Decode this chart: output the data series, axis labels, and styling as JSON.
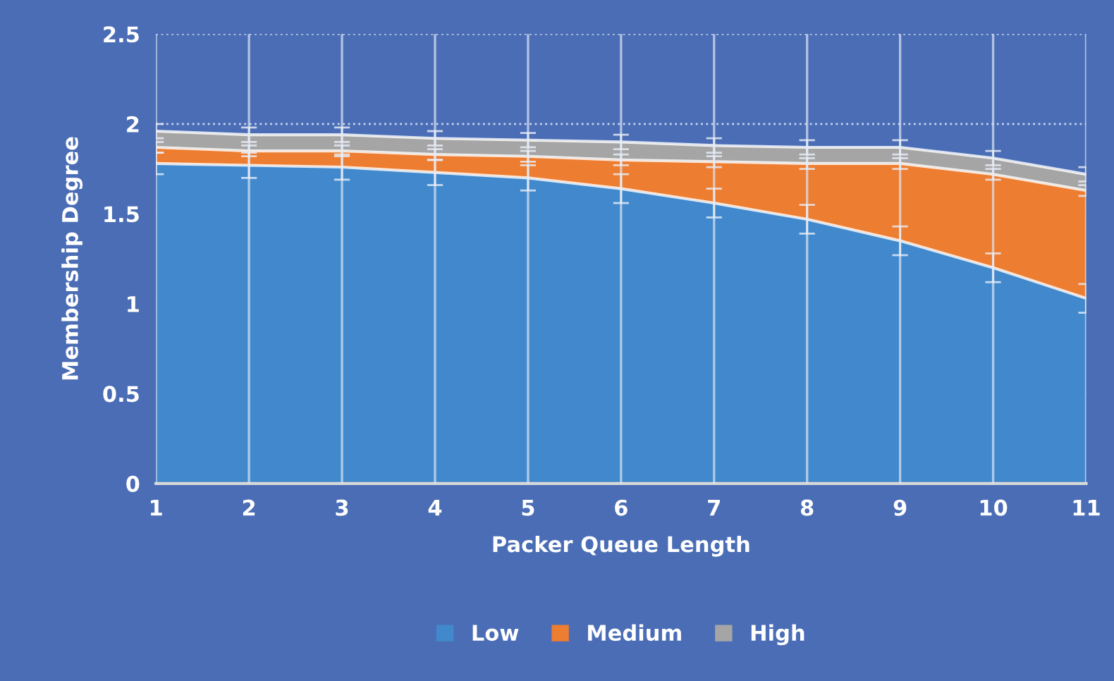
{
  "chart_data": {
    "type": "area",
    "stacked": true,
    "xlabel": "Packer Queue Length",
    "ylabel": "Membership Degree",
    "x": [
      1,
      2,
      3,
      4,
      5,
      6,
      7,
      8,
      9,
      10,
      11
    ],
    "xlim": [
      1,
      11
    ],
    "xticks": [
      1,
      2,
      3,
      4,
      5,
      6,
      7,
      8,
      9,
      10,
      11
    ],
    "ylim": [
      0,
      2.5
    ],
    "yticks": [
      0,
      0.5,
      1,
      1.5,
      2,
      2.5
    ],
    "grid": true,
    "legend": "bottom",
    "series": [
      {
        "name": "Low",
        "color": "#4189cc",
        "values": [
          1.78,
          1.77,
          1.76,
          1.73,
          1.7,
          1.64,
          1.56,
          1.47,
          1.35,
          1.2,
          1.03
        ],
        "errors": [
          0.06,
          0.07,
          0.07,
          0.07,
          0.07,
          0.08,
          0.08,
          0.08,
          0.08,
          0.08,
          0.08
        ]
      },
      {
        "name": "Medium",
        "color": "#ed7d31",
        "values": [
          0.09,
          0.08,
          0.09,
          0.1,
          0.12,
          0.16,
          0.23,
          0.31,
          0.43,
          0.52,
          0.6
        ],
        "errors": [
          0.03,
          0.03,
          0.03,
          0.03,
          0.03,
          0.03,
          0.03,
          0.03,
          0.03,
          0.03,
          0.03
        ]
      },
      {
        "name": "High",
        "color": "#a5a5a5",
        "values": [
          0.09,
          0.09,
          0.09,
          0.09,
          0.09,
          0.1,
          0.09,
          0.09,
          0.09,
          0.09,
          0.09
        ],
        "errors": [
          0.04,
          0.04,
          0.04,
          0.04,
          0.04,
          0.04,
          0.04,
          0.04,
          0.04,
          0.04,
          0.04
        ]
      }
    ]
  }
}
